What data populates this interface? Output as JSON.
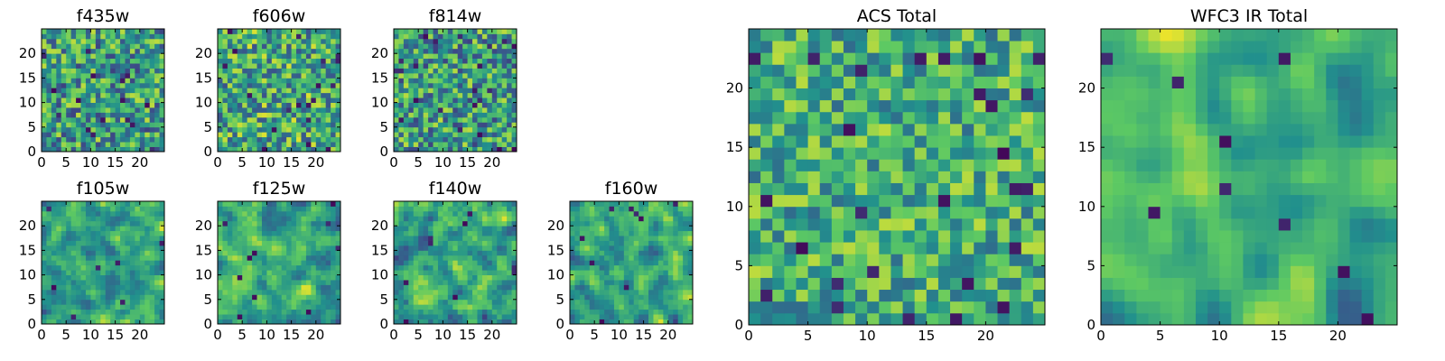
{
  "chart_data": [
    {
      "type": "heatmap",
      "title": "f435w",
      "grid": [
        25,
        25
      ],
      "xlim": [
        0,
        25
      ],
      "ylim": [
        0,
        25
      ],
      "xticks": [
        0,
        5,
        10,
        15,
        20
      ],
      "yticks": [
        0,
        5,
        10,
        15,
        20
      ],
      "seed": 11,
      "smooth": 0,
      "smin": 0.2,
      "smax": 0.9
    },
    {
      "type": "heatmap",
      "title": "f606w",
      "grid": [
        25,
        25
      ],
      "xlim": [
        0,
        25
      ],
      "ylim": [
        0,
        25
      ],
      "xticks": [
        0,
        5,
        10,
        15,
        20
      ],
      "yticks": [
        0,
        5,
        10,
        15,
        20
      ],
      "seed": 23,
      "smooth": 0,
      "smin": 0.25,
      "smax": 0.95
    },
    {
      "type": "heatmap",
      "title": "f814w",
      "grid": [
        25,
        25
      ],
      "xlim": [
        0,
        25
      ],
      "ylim": [
        0,
        25
      ],
      "xticks": [
        0,
        5,
        10,
        15,
        20
      ],
      "yticks": [
        0,
        5,
        10,
        15,
        20
      ],
      "seed": 37,
      "smooth": 0,
      "smin": 0.2,
      "smax": 0.9
    },
    {
      "type": "heatmap",
      "title": "f105w",
      "grid": [
        25,
        25
      ],
      "xlim": [
        0,
        25
      ],
      "ylim": [
        0,
        25
      ],
      "xticks": [
        0,
        5,
        10,
        15,
        20
      ],
      "yticks": [
        0,
        5,
        10,
        15,
        20
      ],
      "seed": 41,
      "smooth": 1,
      "smin": 0.25,
      "smax": 0.95
    },
    {
      "type": "heatmap",
      "title": "f125w",
      "grid": [
        25,
        25
      ],
      "xlim": [
        0,
        25
      ],
      "ylim": [
        0,
        25
      ],
      "xticks": [
        0,
        5,
        10,
        15,
        20
      ],
      "yticks": [
        0,
        5,
        10,
        15,
        20
      ],
      "seed": 53,
      "smooth": 1,
      "smin": 0.25,
      "smax": 0.95
    },
    {
      "type": "heatmap",
      "title": "f140w",
      "grid": [
        25,
        25
      ],
      "xlim": [
        0,
        25
      ],
      "ylim": [
        0,
        25
      ],
      "xticks": [
        0,
        5,
        10,
        15,
        20
      ],
      "yticks": [
        0,
        5,
        10,
        15,
        20
      ],
      "seed": 67,
      "smooth": 1,
      "smin": 0.2,
      "smax": 0.95
    },
    {
      "type": "heatmap",
      "title": "f160w",
      "grid": [
        25,
        25
      ],
      "xlim": [
        0,
        25
      ],
      "ylim": [
        0,
        25
      ],
      "xticks": [
        0,
        5,
        10,
        15,
        20
      ],
      "yticks": [
        0,
        5,
        10,
        15,
        20
      ],
      "seed": 79,
      "smooth": 1,
      "smin": 0.2,
      "smax": 0.95
    },
    {
      "type": "heatmap",
      "title": "ACS Total",
      "grid": [
        25,
        25
      ],
      "xlim": [
        0,
        25
      ],
      "ylim": [
        0,
        25
      ],
      "xticks": [
        0,
        5,
        10,
        15,
        20
      ],
      "yticks": [
        0,
        5,
        10,
        15,
        20
      ],
      "seed": 97,
      "smooth": 0,
      "smin": 0.35,
      "smax": 0.9
    },
    {
      "type": "heatmap",
      "title": "WFC3 IR Total",
      "grid": [
        25,
        25
      ],
      "xlim": [
        0,
        25
      ],
      "ylim": [
        0,
        25
      ],
      "xticks": [
        0,
        5,
        10,
        15,
        20
      ],
      "yticks": [
        0,
        5,
        10,
        15,
        20
      ],
      "seed": 131,
      "smooth": 2,
      "smin": 0.3,
      "smax": 0.97
    }
  ],
  "colormap": [
    "#440154",
    "#3b528b",
    "#21908d",
    "#5dc963",
    "#fde725"
  ]
}
